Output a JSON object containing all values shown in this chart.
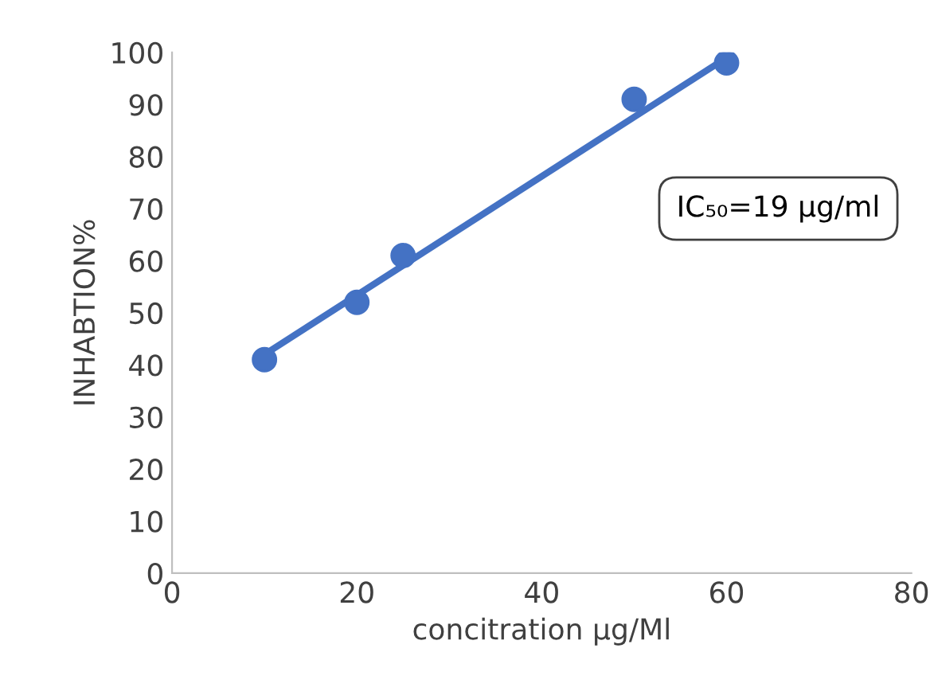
{
  "chart_data": {
    "type": "scatter",
    "xlabel": "concitration µg/Ml",
    "ylabel": "INHABTION%",
    "x": [
      10,
      20,
      25,
      50,
      60
    ],
    "series": [
      {
        "color": "#4472c4",
        "values": [
          41,
          52,
          61,
          91,
          98
        ],
        "marker": "circle"
      },
      {
        "type": "line",
        "color": "#4472c4",
        "x": [
          10,
          60
        ],
        "values": [
          42,
          99
        ],
        "marker": "none"
      }
    ],
    "annotations": [
      "IC₅₀=19 µg/ml"
    ],
    "xlim": [
      0,
      80
    ],
    "xticks": [
      0,
      20,
      40,
      60,
      80
    ],
    "ylim": [
      0,
      100
    ],
    "yticks": [
      0,
      10,
      20,
      30,
      40,
      50,
      60,
      70,
      80,
      90,
      100
    ],
    "grid": false,
    "legend": false
  }
}
